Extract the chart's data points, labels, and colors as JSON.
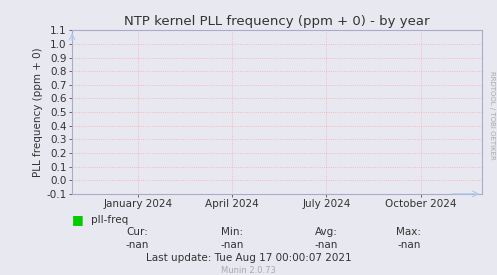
{
  "title": "NTP kernel PLL frequency (ppm + 0) - by year",
  "ylabel": "PLL frequency (ppm + 0)",
  "ylim": [
    -0.1,
    1.1
  ],
  "yticks": [
    -0.1,
    0.0,
    0.1,
    0.2,
    0.3,
    0.4,
    0.5,
    0.6,
    0.7,
    0.8,
    0.9,
    1.0,
    1.1
  ],
  "xtick_labels": [
    "January 2024",
    "April 2024",
    "July 2024",
    "October 2024"
  ],
  "xtick_positions": [
    0.16,
    0.39,
    0.62,
    0.85
  ],
  "bg_color": "#e8e8f0",
  "plot_bg_color": "#e8e8f0",
  "grid_color": "#ffaaaa",
  "axis_color": "#aaaacc",
  "text_color": "#333333",
  "legend_color": "#00cc00",
  "legend_label": "pll-freq",
  "cur_label": "Cur:",
  "cur_val": "-nan",
  "min_label": "Min:",
  "min_val": "-nan",
  "avg_label": "Avg:",
  "avg_val": "-nan",
  "max_label": "Max:",
  "max_val": "-nan",
  "last_update": "Last update: Tue Aug 17 00:00:07 2021",
  "munin_version": "Munin 2.0.73",
  "watermark": "RRDTOOL / TOBI OETIKER",
  "title_fontsize": 9.5,
  "label_fontsize": 7.5,
  "tick_fontsize": 7.5,
  "small_fontsize": 6,
  "watermark_fontsize": 5
}
